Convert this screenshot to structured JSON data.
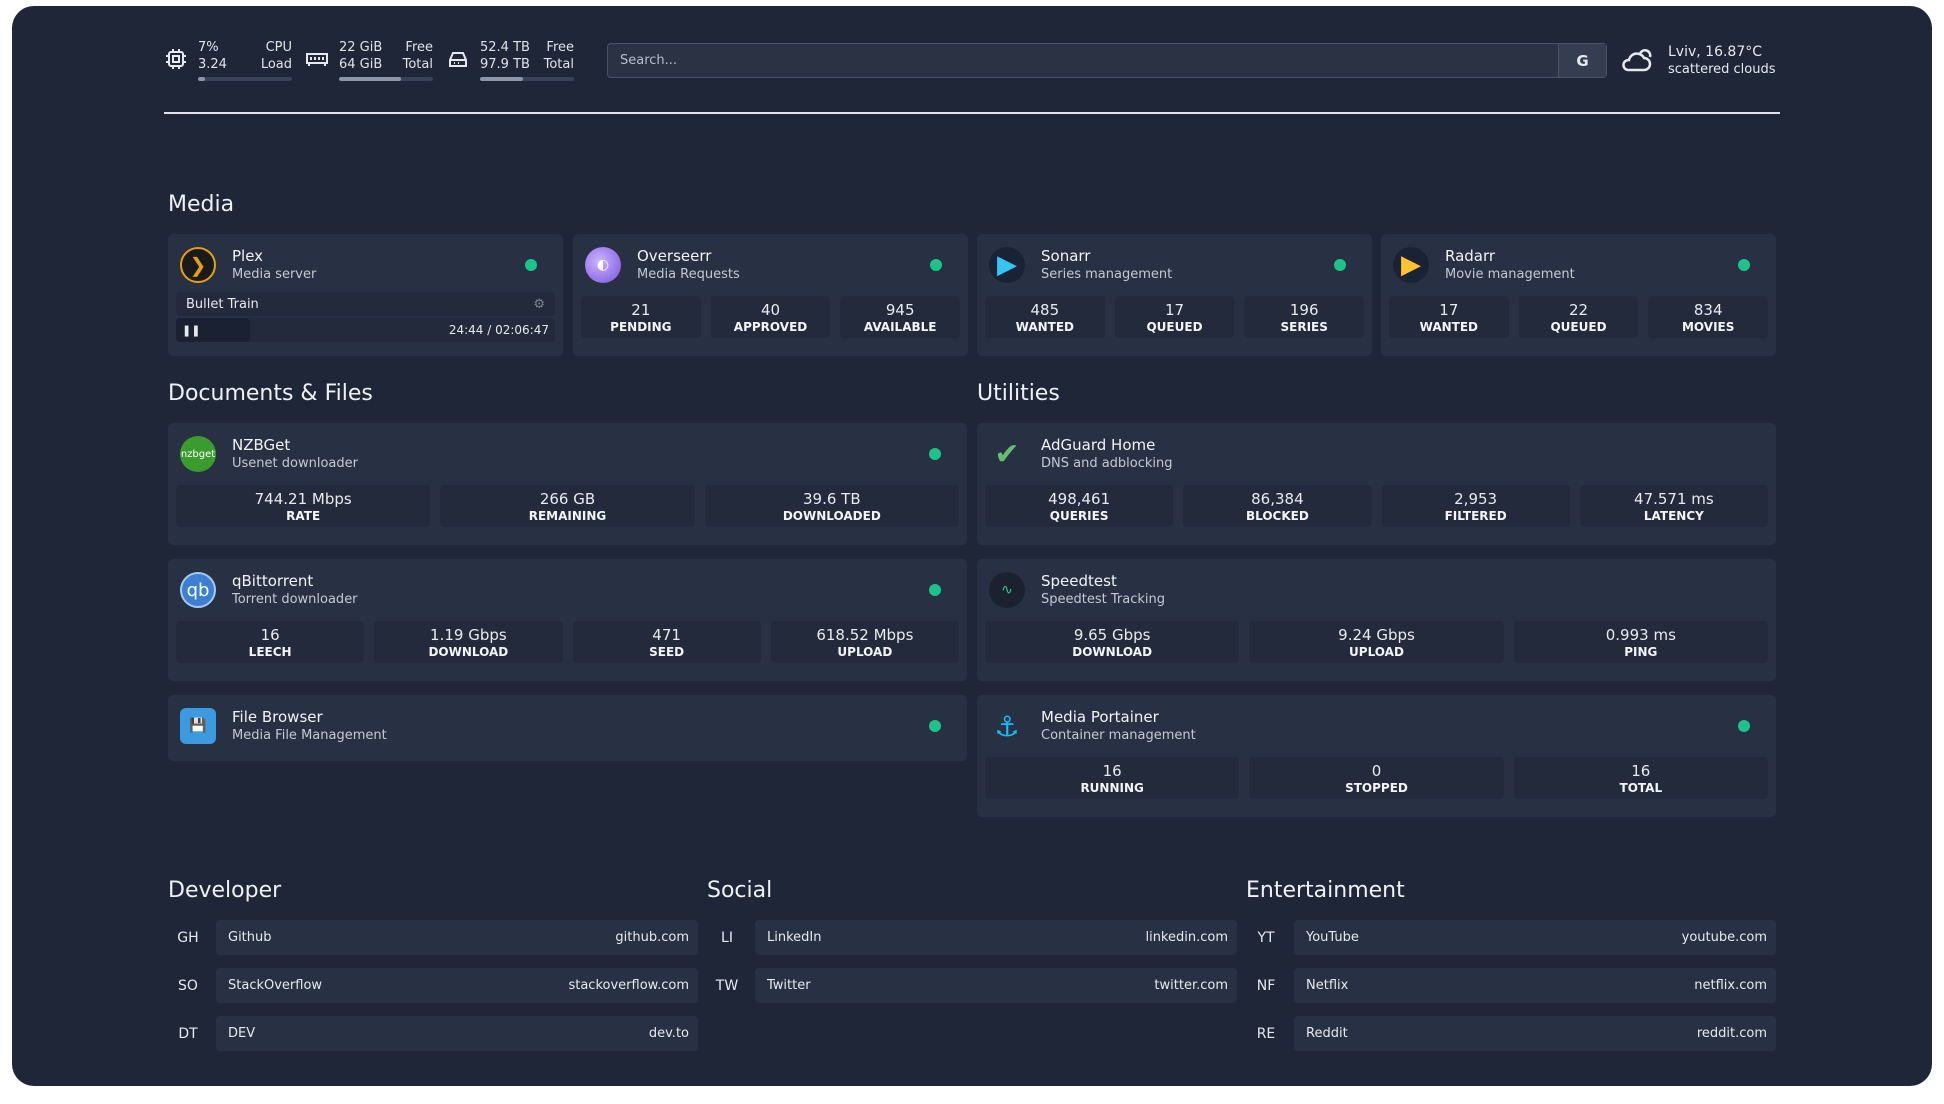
{
  "system": {
    "cpu": {
      "icon": "cpu-icon",
      "v1": "7%",
      "l1": "CPU",
      "v2": "3.24",
      "l2": "Load",
      "fill": 7
    },
    "memory": {
      "icon": "memory-icon",
      "v1": "22 GiB",
      "l1": "Free",
      "v2": "64 GiB",
      "l2": "Total",
      "fill": 66
    },
    "disk": {
      "icon": "disk-icon",
      "v1": "52.4 TB",
      "l1": "Free",
      "v2": "97.9 TB",
      "l2": "Total",
      "fill": 46
    }
  },
  "search": {
    "placeholder": "Search...",
    "button": "G"
  },
  "weather": {
    "icon": "cloud-icon",
    "temp": "Lviv, 16.87°C",
    "desc": "scattered clouds"
  },
  "sections": {
    "media": "Media",
    "docs": "Documents & Files",
    "utilities": "Utilities",
    "developer": "Developer",
    "social": "Social",
    "entertainment": "Entertainment"
  },
  "plex": {
    "name": "Plex",
    "desc": "Media server",
    "title": "Bullet Train",
    "time": "24:44 / 02:06:47",
    "progress": 19.5
  },
  "overseerr": {
    "name": "Overseerr",
    "desc": "Media Requests",
    "fields": [
      {
        "v": "21",
        "l": "PENDING"
      },
      {
        "v": "40",
        "l": "APPROVED"
      },
      {
        "v": "945",
        "l": "AVAILABLE"
      }
    ]
  },
  "sonarr": {
    "name": "Sonarr",
    "desc": "Series management",
    "fields": [
      {
        "v": "485",
        "l": "WANTED"
      },
      {
        "v": "17",
        "l": "QUEUED"
      },
      {
        "v": "196",
        "l": "SERIES"
      }
    ]
  },
  "radarr": {
    "name": "Radarr",
    "desc": "Movie management",
    "fields": [
      {
        "v": "17",
        "l": "WANTED"
      },
      {
        "v": "22",
        "l": "QUEUED"
      },
      {
        "v": "834",
        "l": "MOVIES"
      }
    ]
  },
  "nzbget": {
    "name": "NZBGet",
    "desc": "Usenet downloader",
    "logo": "nzbget",
    "fields": [
      {
        "v": "744.21 Mbps",
        "l": "RATE"
      },
      {
        "v": "266 GB",
        "l": "REMAINING"
      },
      {
        "v": "39.6 TB",
        "l": "DOWNLOADED"
      }
    ]
  },
  "qbit": {
    "name": "qBittorrent",
    "desc": "Torrent downloader",
    "logo": "qb",
    "fields": [
      {
        "v": "16",
        "l": "LEECH"
      },
      {
        "v": "1.19 Gbps",
        "l": "DOWNLOAD"
      },
      {
        "v": "471",
        "l": "SEED"
      },
      {
        "v": "618.52 Mbps",
        "l": "UPLOAD"
      }
    ]
  },
  "filebrowser": {
    "name": "File Browser",
    "desc": "Media File Management"
  },
  "adguard": {
    "name": "AdGuard Home",
    "desc": "DNS and adblocking",
    "fields": [
      {
        "v": "498,461",
        "l": "QUERIES"
      },
      {
        "v": "86,384",
        "l": "BLOCKED"
      },
      {
        "v": "2,953",
        "l": "FILTERED"
      },
      {
        "v": "47.571 ms",
        "l": "LATENCY"
      }
    ]
  },
  "speedtest": {
    "name": "Speedtest",
    "desc": "Speedtest Tracking",
    "fields": [
      {
        "v": "9.65 Gbps",
        "l": "DOWNLOAD"
      },
      {
        "v": "9.24 Gbps",
        "l": "UPLOAD"
      },
      {
        "v": "0.993 ms",
        "l": "PING"
      }
    ]
  },
  "portainer": {
    "name": "Media Portainer",
    "desc": "Container management",
    "fields": [
      {
        "v": "16",
        "l": "RUNNING"
      },
      {
        "v": "0",
        "l": "STOPPED"
      },
      {
        "v": "16",
        "l": "TOTAL"
      }
    ]
  },
  "bookmarks": {
    "developer": [
      {
        "abbr": "GH",
        "name": "Github",
        "url": "github.com"
      },
      {
        "abbr": "SO",
        "name": "StackOverflow",
        "url": "stackoverflow.com"
      },
      {
        "abbr": "DT",
        "name": "DEV",
        "url": "dev.to"
      }
    ],
    "social": [
      {
        "abbr": "LI",
        "name": "LinkedIn",
        "url": "linkedin.com"
      },
      {
        "abbr": "TW",
        "name": "Twitter",
        "url": "twitter.com"
      }
    ],
    "entertainment": [
      {
        "abbr": "YT",
        "name": "YouTube",
        "url": "youtube.com"
      },
      {
        "abbr": "NF",
        "name": "Netflix",
        "url": "netflix.com"
      },
      {
        "abbr": "RE",
        "name": "Reddit",
        "url": "reddit.com"
      }
    ]
  },
  "colors": {
    "background": "#1e2638",
    "card": "#283143",
    "status": "#1ec38a"
  }
}
